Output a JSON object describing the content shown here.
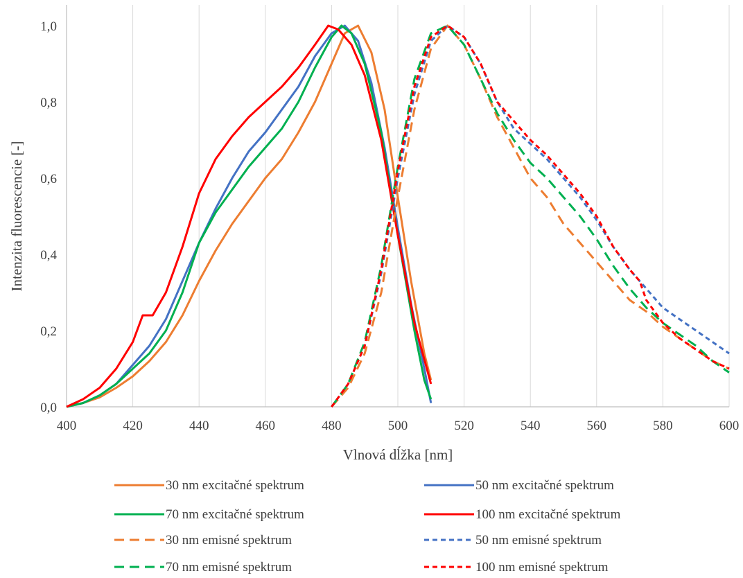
{
  "chart_data": {
    "type": "line",
    "title": "",
    "xlabel": "Vlnová dĺžka [nm]",
    "ylabel": "Intenzita fluorescencie [-]",
    "xlim": [
      400,
      600
    ],
    "ylim": [
      0,
      1.0
    ],
    "x_ticks": [
      "400",
      "420",
      "440",
      "460",
      "480",
      "500",
      "520",
      "540",
      "560",
      "580",
      "600"
    ],
    "y_ticks": [
      "0,0",
      "0,2",
      "0,4",
      "0,6",
      "0,8",
      "1,0"
    ],
    "grid": "vertical",
    "legend_position": "bottom",
    "series": [
      {
        "name": "30 nm excitačné spektrum",
        "color": "#ed7d31",
        "dash": "solid",
        "x": [
          400,
          405,
          410,
          415,
          420,
          425,
          430,
          435,
          440,
          445,
          450,
          455,
          460,
          465,
          470,
          475,
          480,
          484,
          488,
          492,
          496,
          500,
          504,
          508,
          510
        ],
        "y": [
          0.0,
          0.01,
          0.025,
          0.05,
          0.08,
          0.12,
          0.17,
          0.24,
          0.33,
          0.41,
          0.48,
          0.54,
          0.6,
          0.65,
          0.72,
          0.8,
          0.9,
          0.98,
          1.0,
          0.93,
          0.78,
          0.55,
          0.33,
          0.14,
          0.07
        ]
      },
      {
        "name": "50 nm excitačné spektrum",
        "color": "#4472c4",
        "dash": "solid",
        "x": [
          400,
          405,
          410,
          415,
          420,
          425,
          430,
          435,
          440,
          445,
          450,
          455,
          460,
          465,
          470,
          475,
          480,
          484,
          488,
          492,
          496,
          500,
          504,
          508,
          510
        ],
        "y": [
          0.0,
          0.01,
          0.03,
          0.06,
          0.11,
          0.16,
          0.23,
          0.33,
          0.43,
          0.52,
          0.6,
          0.67,
          0.72,
          0.78,
          0.84,
          0.92,
          0.98,
          1.0,
          0.96,
          0.85,
          0.68,
          0.47,
          0.27,
          0.1,
          0.01
        ]
      },
      {
        "name": "70 nm excitačné spektrum",
        "color": "#00b050",
        "dash": "solid",
        "x": [
          400,
          405,
          410,
          415,
          420,
          425,
          430,
          435,
          440,
          445,
          450,
          455,
          460,
          465,
          470,
          475,
          480,
          483,
          486,
          490,
          495,
          500,
          505,
          508,
          510
        ],
        "y": [
          0.0,
          0.01,
          0.03,
          0.06,
          0.1,
          0.14,
          0.2,
          0.3,
          0.43,
          0.51,
          0.57,
          0.63,
          0.68,
          0.73,
          0.8,
          0.89,
          0.97,
          1.0,
          0.98,
          0.9,
          0.72,
          0.45,
          0.2,
          0.07,
          0.02
        ]
      },
      {
        "name": "100 nm excitačné spektrum",
        "color": "#ff0000",
        "dash": "solid",
        "x": [
          400,
          405,
          410,
          415,
          420,
          423,
          426,
          430,
          435,
          440,
          445,
          450,
          455,
          460,
          465,
          470,
          475,
          479,
          482,
          486,
          490,
          495,
          500,
          505,
          510
        ],
        "y": [
          0.0,
          0.02,
          0.05,
          0.1,
          0.17,
          0.24,
          0.24,
          0.3,
          0.42,
          0.56,
          0.65,
          0.71,
          0.76,
          0.8,
          0.84,
          0.89,
          0.95,
          1.0,
          0.99,
          0.95,
          0.87,
          0.7,
          0.45,
          0.22,
          0.06
        ]
      },
      {
        "name": "30 nm emisné spektrum",
        "color": "#ed7d31",
        "dash": "long",
        "x": [
          480,
          485,
          490,
          495,
          500,
          505,
          510,
          515,
          520,
          525,
          530,
          535,
          540,
          545,
          550,
          555,
          560,
          565,
          570,
          575,
          580,
          585,
          590,
          595,
          600
        ],
        "y": [
          0.0,
          0.05,
          0.14,
          0.3,
          0.55,
          0.78,
          0.94,
          1.0,
          0.95,
          0.86,
          0.76,
          0.68,
          0.6,
          0.55,
          0.48,
          0.43,
          0.38,
          0.33,
          0.28,
          0.25,
          0.21,
          0.18,
          0.15,
          0.12,
          0.1
        ]
      },
      {
        "name": "50 nm emisné spektrum",
        "color": "#4472c4",
        "dash": "short",
        "x": [
          480,
          485,
          490,
          495,
          500,
          505,
          510,
          515,
          520,
          525,
          530,
          535,
          540,
          545,
          550,
          555,
          560,
          565,
          570,
          575,
          580,
          585,
          590,
          595,
          600
        ],
        "y": [
          0.0,
          0.06,
          0.16,
          0.35,
          0.6,
          0.82,
          0.96,
          1.0,
          0.97,
          0.9,
          0.8,
          0.73,
          0.69,
          0.65,
          0.6,
          0.55,
          0.49,
          0.42,
          0.36,
          0.31,
          0.26,
          0.23,
          0.2,
          0.17,
          0.14
        ]
      },
      {
        "name": "70 nm emisné spektrum",
        "color": "#00b050",
        "dash": "long",
        "x": [
          480,
          485,
          490,
          495,
          500,
          505,
          510,
          515,
          520,
          525,
          530,
          535,
          540,
          545,
          550,
          555,
          560,
          565,
          570,
          575,
          580,
          585,
          590,
          595,
          600
        ],
        "y": [
          0.0,
          0.06,
          0.17,
          0.37,
          0.63,
          0.86,
          0.98,
          1.0,
          0.95,
          0.86,
          0.77,
          0.7,
          0.64,
          0.6,
          0.55,
          0.5,
          0.44,
          0.37,
          0.31,
          0.26,
          0.22,
          0.19,
          0.16,
          0.12,
          0.09
        ]
      },
      {
        "name": "100 nm emisné spektrum",
        "color": "#ff0000",
        "dash": "short",
        "x": [
          480,
          485,
          490,
          495,
          500,
          505,
          510,
          515,
          520,
          525,
          530,
          535,
          540,
          545,
          550,
          555,
          560,
          565,
          570,
          573,
          575,
          580,
          585,
          590,
          595,
          600
        ],
        "y": [
          0.0,
          0.06,
          0.16,
          0.36,
          0.62,
          0.84,
          0.97,
          1.0,
          0.97,
          0.9,
          0.8,
          0.75,
          0.7,
          0.66,
          0.61,
          0.56,
          0.5,
          0.42,
          0.36,
          0.33,
          0.28,
          0.22,
          0.18,
          0.15,
          0.12,
          0.1
        ]
      }
    ]
  }
}
